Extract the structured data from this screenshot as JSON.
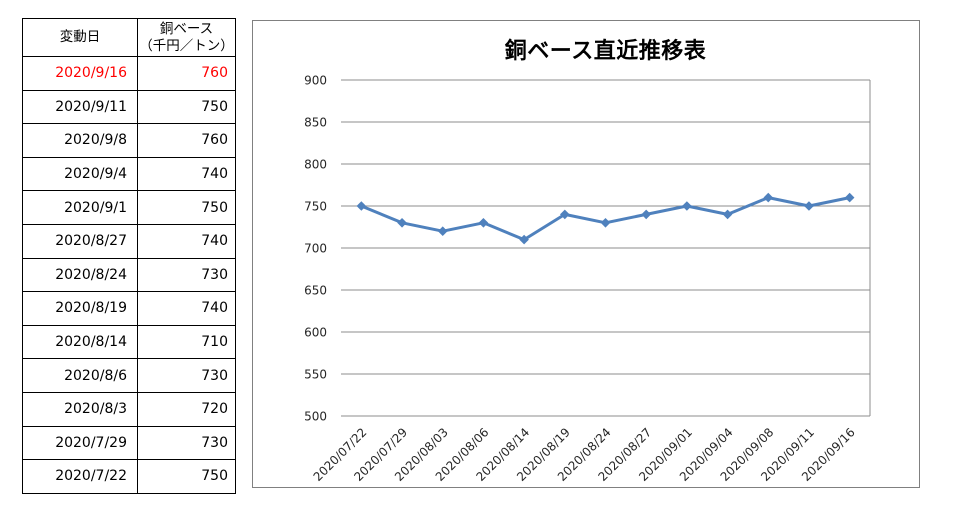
{
  "table": {
    "headers": {
      "date": "変動日",
      "value_line1": "銅ベース",
      "value_line2": "（千円／トン）"
    },
    "highlight_color": "#FF0000",
    "rows": [
      {
        "date": "2020/9/16",
        "value": "760",
        "highlight": true
      },
      {
        "date": "2020/9/11",
        "value": "750",
        "highlight": false
      },
      {
        "date": "2020/9/8",
        "value": "760",
        "highlight": false
      },
      {
        "date": "2020/9/4",
        "value": "740",
        "highlight": false
      },
      {
        "date": "2020/9/1",
        "value": "750",
        "highlight": false
      },
      {
        "date": "2020/8/27",
        "value": "740",
        "highlight": false
      },
      {
        "date": "2020/8/24",
        "value": "730",
        "highlight": false
      },
      {
        "date": "2020/8/19",
        "value": "740",
        "highlight": false
      },
      {
        "date": "2020/8/14",
        "value": "710",
        "highlight": false
      },
      {
        "date": "2020/8/6",
        "value": "730",
        "highlight": false
      },
      {
        "date": "2020/8/3",
        "value": "720",
        "highlight": false
      },
      {
        "date": "2020/7/29",
        "value": "730",
        "highlight": false
      },
      {
        "date": "2020/7/22",
        "value": "750",
        "highlight": false
      }
    ]
  },
  "chart_data": {
    "type": "line",
    "title": "銅ベース直近推移表",
    "categories": [
      "2020/07/22",
      "2020/07/29",
      "2020/08/03",
      "2020/08/06",
      "2020/08/14",
      "2020/08/19",
      "2020/08/24",
      "2020/08/27",
      "2020/09/01",
      "2020/09/04",
      "2020/09/08",
      "2020/09/11",
      "2020/09/16"
    ],
    "values": [
      750,
      730,
      720,
      730,
      710,
      740,
      730,
      740,
      750,
      740,
      760,
      750,
      760
    ],
    "xlabel": "",
    "ylabel": "",
    "ylim": [
      500,
      900
    ],
    "ytick_step": 50,
    "grid": true,
    "legend": "none",
    "marker": "diamond",
    "line_color": "#4F81BD",
    "gridline_color": "#8C8C8C",
    "plot_border_color": "#8C8C8C",
    "tick_label_color": "#262626",
    "frame_border_color": "#808080"
  }
}
